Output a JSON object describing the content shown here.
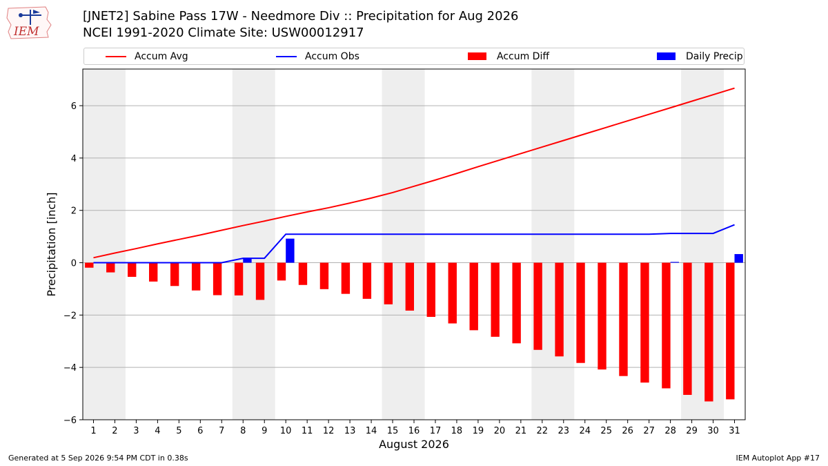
{
  "header": {
    "title": "[JNET2] Sabine Pass 17W - Needmore Div :: Precipitation for Aug 2026",
    "subtitle": "NCEI 1991-2020 Climate Site: USW00012917",
    "logo_text": "IEM"
  },
  "footer": {
    "left": "Generated at 5 Sep 2026 9:54 PM CDT in 0.38s",
    "right": "IEM Autoplot App #17"
  },
  "legend": {
    "placement": "top",
    "items": [
      {
        "label": "Accum Avg",
        "kind": "line",
        "color": "#ff0000"
      },
      {
        "label": "Accum Obs",
        "kind": "line",
        "color": "#0000ff"
      },
      {
        "label": "Accum Diff",
        "kind": "bar",
        "color": "#ff0000"
      },
      {
        "label": "Daily Precip",
        "kind": "bar",
        "color": "#0000ff"
      }
    ]
  },
  "chart_data": {
    "type": "bar",
    "xlabel": "August 2026",
    "ylabel": "Precipitation [inch]",
    "ylim": [
      -6,
      7.4
    ],
    "yticks": [
      -6,
      -4,
      -2,
      0,
      2,
      4,
      6
    ],
    "ytick_labels": [
      "−6",
      "−4",
      "−2",
      "0",
      "2",
      "4",
      "6"
    ],
    "grid": "horizontal",
    "weekend_shading": [
      [
        1,
        2
      ],
      [
        8,
        9
      ],
      [
        15,
        16
      ],
      [
        22,
        23
      ],
      [
        29,
        30
      ]
    ],
    "days": [
      1,
      2,
      3,
      4,
      5,
      6,
      7,
      8,
      9,
      10,
      11,
      12,
      13,
      14,
      15,
      16,
      17,
      18,
      19,
      20,
      21,
      22,
      23,
      24,
      25,
      26,
      27,
      28,
      29,
      30,
      31
    ],
    "series": [
      {
        "name": "Accum Avg",
        "type": "line",
        "color": "#ff0000",
        "values": [
          0.19,
          0.37,
          0.54,
          0.72,
          0.89,
          1.06,
          1.24,
          1.42,
          1.59,
          1.77,
          1.94,
          2.1,
          2.28,
          2.47,
          2.68,
          2.92,
          3.16,
          3.41,
          3.67,
          3.92,
          4.17,
          4.42,
          4.67,
          4.92,
          5.17,
          5.42,
          5.67,
          5.92,
          6.17,
          6.42,
          6.67
        ]
      },
      {
        "name": "Accum Obs",
        "type": "line",
        "color": "#0000ff",
        "values": [
          0,
          0,
          0,
          0,
          0,
          0,
          0,
          0.17,
          0.17,
          1.09,
          1.09,
          1.09,
          1.09,
          1.09,
          1.09,
          1.09,
          1.09,
          1.09,
          1.09,
          1.09,
          1.09,
          1.09,
          1.09,
          1.09,
          1.09,
          1.09,
          1.09,
          1.12,
          1.12,
          1.12,
          1.45
        ]
      },
      {
        "name": "Accum Diff",
        "type": "bar",
        "color": "#ff0000",
        "values": [
          -0.19,
          -0.37,
          -0.54,
          -0.72,
          -0.89,
          -1.06,
          -1.24,
          -1.25,
          -1.42,
          -0.68,
          -0.85,
          -1.01,
          -1.19,
          -1.38,
          -1.59,
          -1.83,
          -2.07,
          -2.32,
          -2.58,
          -2.83,
          -3.08,
          -3.33,
          -3.58,
          -3.83,
          -4.08,
          -4.33,
          -4.58,
          -4.8,
          -5.05,
          -5.3,
          -5.22
        ]
      },
      {
        "name": "Daily Precip",
        "type": "bar",
        "color": "#0000ff",
        "values": [
          0,
          0,
          0,
          0,
          0,
          0,
          0,
          0.17,
          0,
          0.92,
          0,
          0,
          0,
          0,
          0,
          0,
          0,
          0,
          0,
          0,
          0,
          0,
          0,
          0,
          0,
          0,
          0,
          0.03,
          0,
          0,
          0.33
        ]
      }
    ]
  }
}
